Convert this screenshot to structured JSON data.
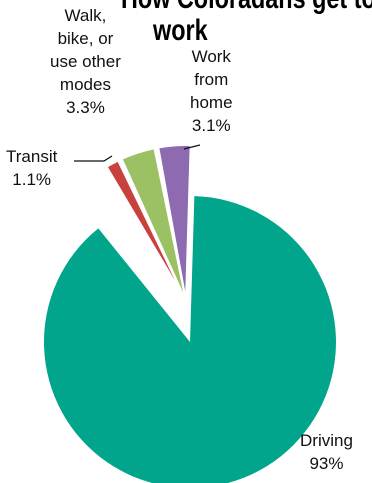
{
  "chart_data": {
    "type": "pie",
    "title_lines": [
      "How Coloradans get to",
      "work"
    ],
    "categories": [
      "Driving",
      "Transit",
      "Walk, bike, or use other modes",
      "Work from home"
    ],
    "values": [
      93,
      1.1,
      3.3,
      3.1
    ],
    "value_labels": [
      "93%",
      "1.1%",
      "3.3%",
      "3.1%"
    ],
    "label_lines": {
      "driving": [
        "Driving",
        "93%"
      ],
      "transit": [
        "Transit",
        "1.1%"
      ],
      "walk": [
        "Walk,",
        "bike, or",
        "use other",
        "modes",
        "3.3%"
      ],
      "wfh": [
        "Work",
        "from",
        "home",
        "3.1%"
      ]
    },
    "colors": [
      "#00a58b",
      "#c9413d",
      "#9cc064",
      "#8e6bb0"
    ],
    "exploded_slices": [
      "Transit",
      "Walk, bike, or use other modes",
      "Work from home"
    ]
  }
}
